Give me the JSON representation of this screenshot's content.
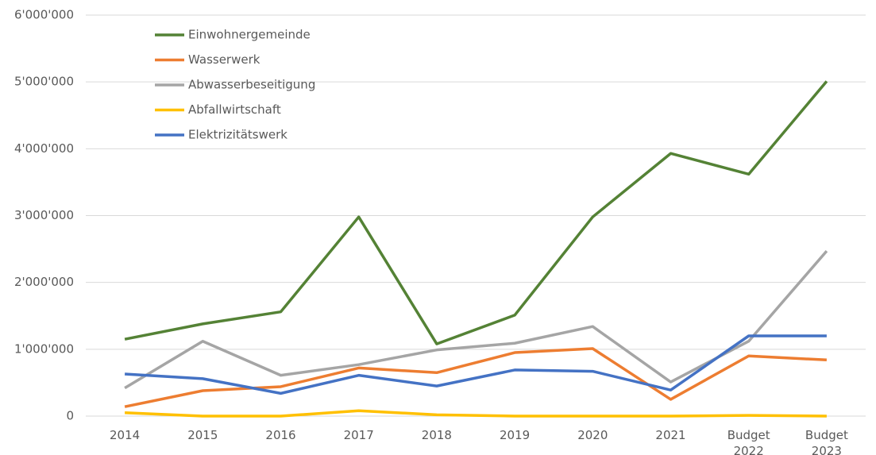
{
  "chart_data": {
    "type": "line",
    "categories": [
      "2014",
      "2015",
      "2016",
      "2017",
      "2018",
      "2019",
      "2020",
      "2021",
      "Budget 2022",
      "Budget 2023"
    ],
    "series": [
      {
        "name": "Einwohnergemeinde",
        "color": "#548235",
        "values": [
          1150000,
          1380000,
          1560000,
          2980000,
          1080000,
          1510000,
          2980000,
          3930000,
          3620000,
          5010000
        ]
      },
      {
        "name": "Wasserwerk",
        "color": "#ed7d31",
        "values": [
          140000,
          380000,
          440000,
          720000,
          650000,
          950000,
          1010000,
          250000,
          900000,
          840000
        ]
      },
      {
        "name": "Abwasserbeseitigung",
        "color": "#a5a5a5",
        "values": [
          420000,
          1120000,
          610000,
          770000,
          990000,
          1090000,
          1340000,
          510000,
          1120000,
          2470000
        ]
      },
      {
        "name": "Abfallwirtschaft",
        "color": "#ffc000",
        "values": [
          50000,
          0,
          0,
          80000,
          20000,
          0,
          0,
          0,
          10000,
          0
        ]
      },
      {
        "name": "Elektrizitätswerk",
        "color": "#4472c4",
        "values": [
          630000,
          560000,
          340000,
          610000,
          450000,
          690000,
          670000,
          390000,
          1200000,
          1200000
        ]
      }
    ],
    "ylim": [
      0,
      6000000
    ],
    "yticks": [
      0,
      {
        "value": 1000000,
        "label": "1'000'000"
      },
      {
        "value": 2000000,
        "label": "2'000'000"
      },
      {
        "value": 3000000,
        "label": "3'000'000"
      },
      {
        "value": 4000000,
        "label": "4'000'000"
      },
      {
        "value": 5000000,
        "label": "5'000'000"
      },
      {
        "value": 6000000,
        "label": "6'000'000"
      }
    ],
    "grid": true,
    "legend": "upper left"
  }
}
